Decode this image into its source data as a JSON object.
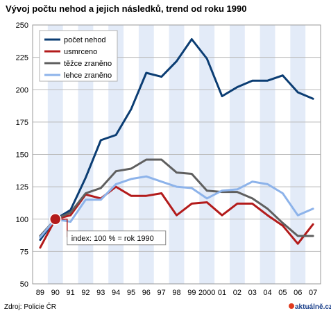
{
  "chart_data": {
    "type": "line",
    "title": "Vývoj počtu nehod a jejich následků, trend od roku 1990",
    "source": "Zdroj: Policie ČR",
    "logo": "aktuálně.cz",
    "categories": [
      "89",
      "90",
      "91",
      "92",
      "93",
      "94",
      "95",
      "96",
      "97",
      "98",
      "99",
      "2000",
      "01",
      "02",
      "03",
      "04",
      "05",
      "06",
      "07"
    ],
    "ylim": [
      50,
      250
    ],
    "yticks": [
      50,
      75,
      100,
      125,
      150,
      175,
      200,
      225,
      250
    ],
    "grid": true,
    "legend_position": "top-left",
    "annotation": {
      "text": "index: 100 % = rok 1990",
      "category": "90",
      "value": 100,
      "color": "#b31b1b"
    },
    "series": [
      {
        "name": "počet nehod",
        "color": "#0b3d73",
        "values": [
          84,
          100,
          107,
          132,
          161,
          165,
          185,
          213,
          210,
          222,
          239,
          224,
          195,
          202,
          207,
          207,
          211,
          198,
          193
        ]
      },
      {
        "name": "usmrceno",
        "color": "#b31b1b",
        "values": [
          78,
          100,
          103,
          119,
          116,
          125,
          118,
          118,
          120,
          103,
          112,
          113,
          103,
          112,
          112,
          103,
          95,
          81,
          96
        ]
      },
      {
        "name": "těžce zraněno",
        "color": "#5f5f5f",
        "values": [
          87,
          100,
          105,
          120,
          124,
          137,
          139,
          146,
          146,
          136,
          135,
          122,
          121,
          121,
          116,
          108,
          97,
          87,
          87
        ]
      },
      {
        "name": "lehce zraněno",
        "color": "#8db3ea",
        "values": [
          86,
          100,
          98,
          115,
          115,
          127,
          131,
          133,
          129,
          125,
          124,
          116,
          122,
          123,
          129,
          127,
          120,
          103,
          108
        ]
      }
    ]
  }
}
